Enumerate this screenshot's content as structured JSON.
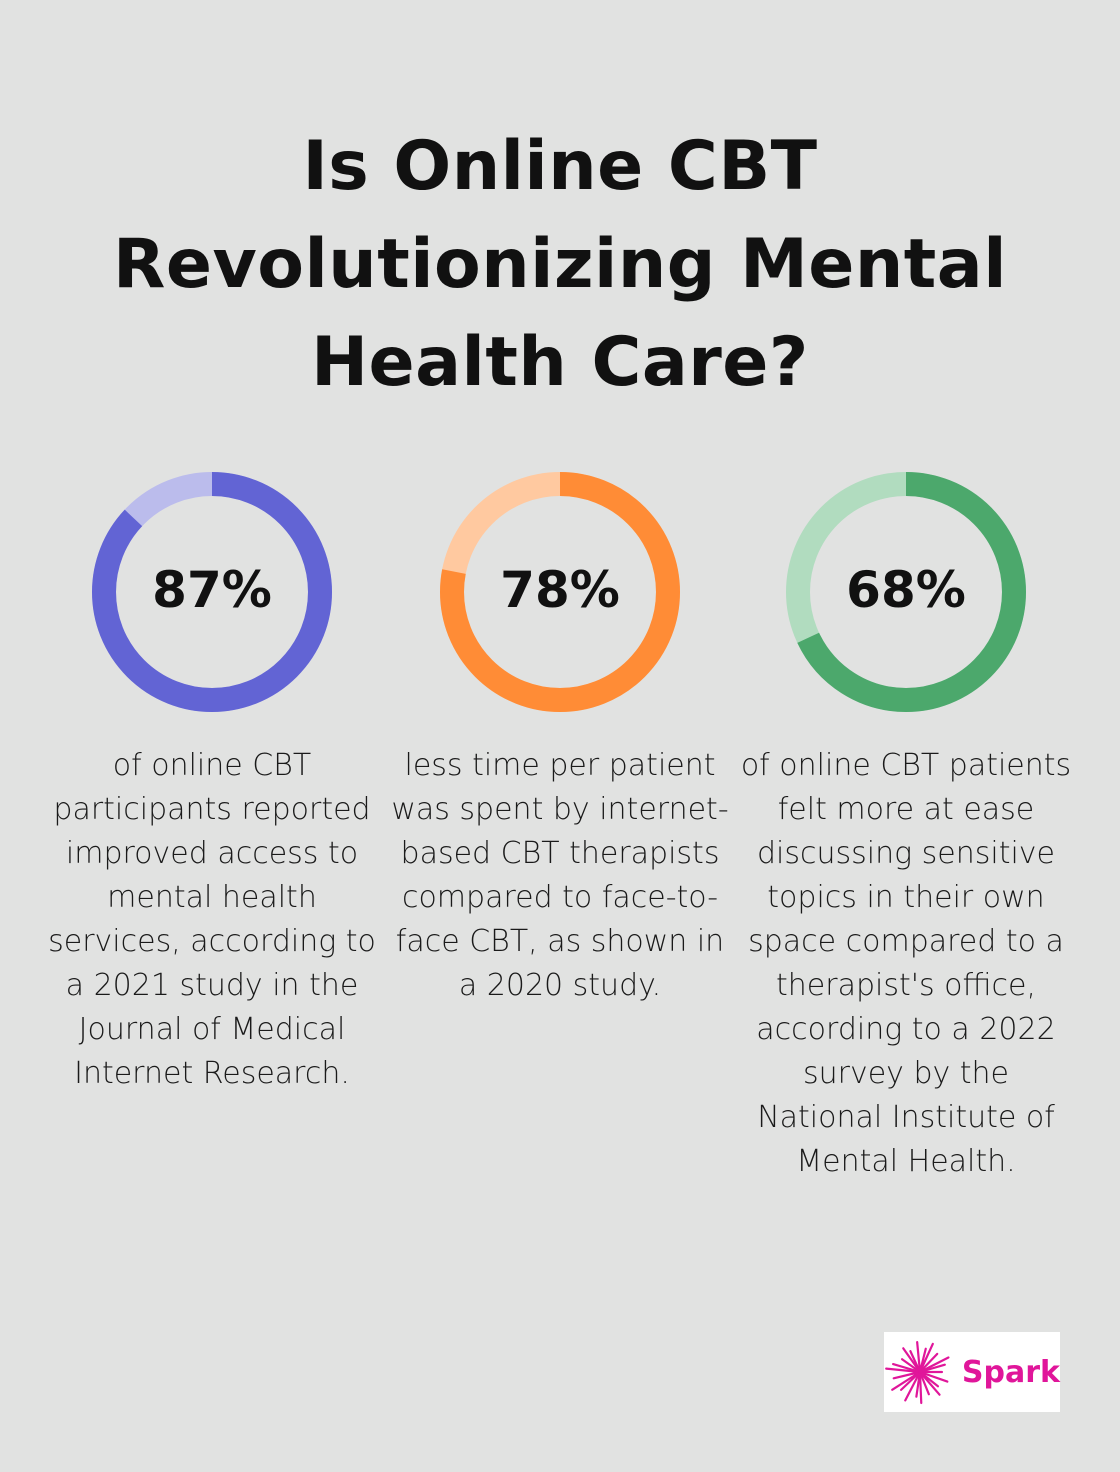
{
  "title": "Is Online CBT Revolutionizing Mental Health Care?",
  "chart_data": [
    {
      "type": "pie",
      "variant": "donut",
      "label": "87%",
      "value": 87,
      "max": 100,
      "color": "#6264d4",
      "track_color": "#bbbcec",
      "description": "of online CBT participants reported improved access to mental health services, according to a 2021 study in the Journal of Medical Internet Research."
    },
    {
      "type": "pie",
      "variant": "donut",
      "label": "78%",
      "value": 78,
      "max": 100,
      "color": "#ff8c36",
      "track_color": "#ffc9a0",
      "description": "less time per patient was spent by internet-based CBT therapists compared to face-to-face CBT, as shown in a 2020 study."
    },
    {
      "type": "pie",
      "variant": "donut",
      "label": "68%",
      "value": 68,
      "max": 100,
      "color": "#4ca86c",
      "track_color": "#b1dcbf",
      "description": "of online CBT patients felt more at ease discussing sensitive topics in their own space compared to a therapist's office, according to a 2022 survey by the National Institute of Mental Health."
    }
  ],
  "logo": {
    "text": "Spark",
    "color": "#e0169a",
    "icon": "starburst-icon"
  }
}
